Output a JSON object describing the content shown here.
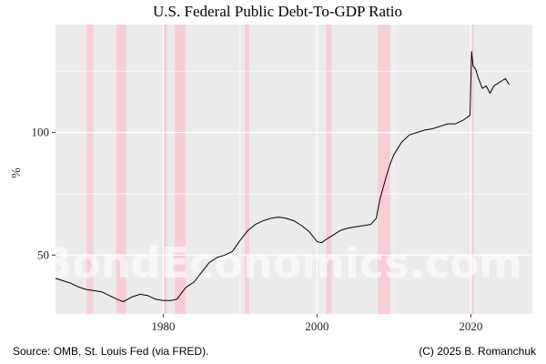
{
  "chart_data": {
    "type": "line",
    "title": "U.S. Federal Public Debt-To-GDP Ratio",
    "xlabel": "",
    "ylabel": "%",
    "xlim": [
      1966,
      2028
    ],
    "ylim": [
      26,
      144
    ],
    "x_ticks": [
      1980,
      2000,
      2020
    ],
    "y_ticks": [
      50,
      100
    ],
    "grid": true,
    "recessions": [
      [
        1969.9,
        1970.9
      ],
      [
        1973.9,
        1975.2
      ],
      [
        1980.0,
        1980.5
      ],
      [
        1981.5,
        1982.9
      ],
      [
        1990.6,
        1991.2
      ],
      [
        2001.2,
        2001.9
      ],
      [
        2007.9,
        2009.5
      ],
      [
        2020.1,
        2020.4
      ]
    ],
    "series": [
      {
        "x": [
          1966.0,
          1967.0,
          1968.0,
          1969.0,
          1970.0,
          1971.0,
          1972.0,
          1973.0,
          1974.0,
          1974.8,
          1976.0,
          1977.0,
          1978.0,
          1979.0,
          1980.0,
          1981.0,
          1981.8,
          1982.5,
          1983.0,
          1984.0,
          1985.0,
          1986.0,
          1987.0,
          1988.0,
          1989.0,
          1990.0,
          1991.0,
          1992.0,
          1993.0,
          1994.0,
          1995.0,
          1996.0,
          1997.0,
          1998.0,
          1999.0,
          2000.0,
          2000.6,
          2001.0,
          2002.0,
          2003.0,
          2004.0,
          2005.0,
          2006.0,
          2007.0,
          2007.7,
          2008.2,
          2009.0,
          2009.5,
          2010.0,
          2011.0,
          2012.0,
          2013.0,
          2014.0,
          2015.0,
          2016.0,
          2017.0,
          2018.0,
          2019.0,
          2019.9,
          2020.1,
          2020.3,
          2020.6,
          2021.0,
          2021.5,
          2022.0,
          2022.5,
          2023.0,
          2023.5,
          2024.0,
          2024.5,
          2025.0
        ],
        "y": [
          40.5,
          39.5,
          38.5,
          37.0,
          36.0,
          35.5,
          35.0,
          33.5,
          32.0,
          31.0,
          33.0,
          34.0,
          33.5,
          32.0,
          31.5,
          31.5,
          32.0,
          35.0,
          37.0,
          39.0,
          43.0,
          47.0,
          49.0,
          50.0,
          51.5,
          56.0,
          60.0,
          62.5,
          64.0,
          65.0,
          65.5,
          65.0,
          64.0,
          62.0,
          59.5,
          55.5,
          55.0,
          56.0,
          58.0,
          60.0,
          61.0,
          61.5,
          62.0,
          62.5,
          65.0,
          73.0,
          82.0,
          87.0,
          91.0,
          96.0,
          99.0,
          100.0,
          101.0,
          101.5,
          102.5,
          103.5,
          103.5,
          105.0,
          107.0,
          133.0,
          127.0,
          126.0,
          122.0,
          118.0,
          119.0,
          116.0,
          119.0,
          120.0,
          121.0,
          122.0,
          119.5
        ]
      }
    ]
  },
  "watermark": "BondEconomics.com",
  "source_note": "Source: OMB, St. Louis Fed (via FRED).",
  "copyright": "(C) 2025 B. Romanchuk"
}
